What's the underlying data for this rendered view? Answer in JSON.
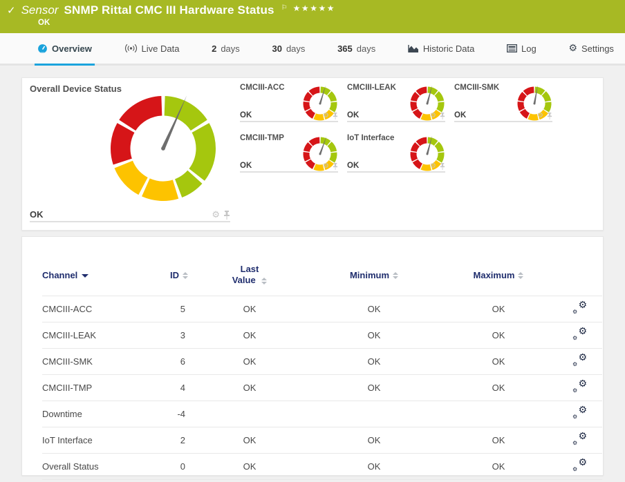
{
  "header": {
    "kind": "Sensor",
    "title": "SNMP Rittal CMC III Hardware Status",
    "status": "OK",
    "rating": "★★★★★",
    "bg_color": "#a7b924"
  },
  "icons": {
    "check": "✓",
    "flag": "⚐",
    "gear": "⚙",
    "settings_gear": "⚙"
  },
  "tabs": {
    "overview": {
      "label": "Overview",
      "active": true
    },
    "live": {
      "label": "Live Data"
    },
    "d2": {
      "num": "2",
      "unit": "days"
    },
    "d30": {
      "num": "30",
      "unit": "days"
    },
    "d365": {
      "num": "365",
      "unit": "days"
    },
    "historic": {
      "label": "Historic Data"
    },
    "log": {
      "label": "Log"
    },
    "settings": {
      "label": "Settings"
    }
  },
  "accent_colors": {
    "active_tab_underline": "#1aa3dc",
    "table_header_text": "#1f2d6d"
  },
  "chart_data": {
    "type": "gauge-set",
    "status_colors": {
      "green": "#a5c70e",
      "yellow": "#fdc300",
      "red": "#d61518"
    },
    "needle_color": "#6e6e6e",
    "main_gauge": {
      "name": "Overall Device Status",
      "status": "OK",
      "needle_deg": 24,
      "segments": [
        [
          "green",
          2,
          57
        ],
        [
          "green",
          61,
          128
        ],
        [
          "green",
          132,
          159
        ],
        [
          "yellow",
          163,
          204
        ],
        [
          "yellow",
          208,
          248
        ],
        [
          "red",
          252,
          299
        ],
        [
          "red",
          303,
          358
        ]
      ]
    },
    "mini_segments": [
      [
        "green",
        2,
        39
      ],
      [
        "green",
        43,
        80
      ],
      [
        "green",
        84,
        121
      ],
      [
        "yellow",
        125,
        162
      ],
      [
        "yellow",
        166,
        203
      ],
      [
        "red",
        207,
        240
      ],
      [
        "red",
        244,
        277
      ],
      [
        "red",
        281,
        314
      ],
      [
        "red",
        318,
        358
      ]
    ],
    "mini_gauges": [
      {
        "name": "CMCIII-ACC",
        "status": "OK",
        "needle_deg": 17
      },
      {
        "name": "CMCIII-LEAK",
        "status": "OK",
        "needle_deg": 15
      },
      {
        "name": "CMCIII-SMK",
        "status": "OK",
        "needle_deg": 10
      },
      {
        "name": "CMCIII-TMP",
        "status": "OK",
        "needle_deg": 20
      },
      {
        "name": "IoT Interface",
        "status": "OK",
        "needle_deg": 15
      }
    ]
  },
  "table": {
    "columns": [
      {
        "label": "Channel",
        "sorted": "desc"
      },
      {
        "label": "ID",
        "sortable": true
      },
      {
        "label": "Last Value",
        "sortable": true
      },
      {
        "label": "Minimum",
        "sortable": true
      },
      {
        "label": "Maximum",
        "sortable": true
      }
    ],
    "rows": [
      {
        "channel": "CMCIII-ACC",
        "id": "5",
        "last": "OK",
        "min": "OK",
        "max": "OK"
      },
      {
        "channel": "CMCIII-LEAK",
        "id": "3",
        "last": "OK",
        "min": "OK",
        "max": "OK"
      },
      {
        "channel": "CMCIII-SMK",
        "id": "6",
        "last": "OK",
        "min": "OK",
        "max": "OK"
      },
      {
        "channel": "CMCIII-TMP",
        "id": "4",
        "last": "OK",
        "min": "OK",
        "max": "OK"
      },
      {
        "channel": "Downtime",
        "id": "-4",
        "last": "",
        "min": "",
        "max": ""
      },
      {
        "channel": "IoT Interface",
        "id": "2",
        "last": "OK",
        "min": "OK",
        "max": "OK"
      },
      {
        "channel": "Overall Status",
        "id": "0",
        "last": "OK",
        "min": "OK",
        "max": "OK"
      }
    ]
  }
}
